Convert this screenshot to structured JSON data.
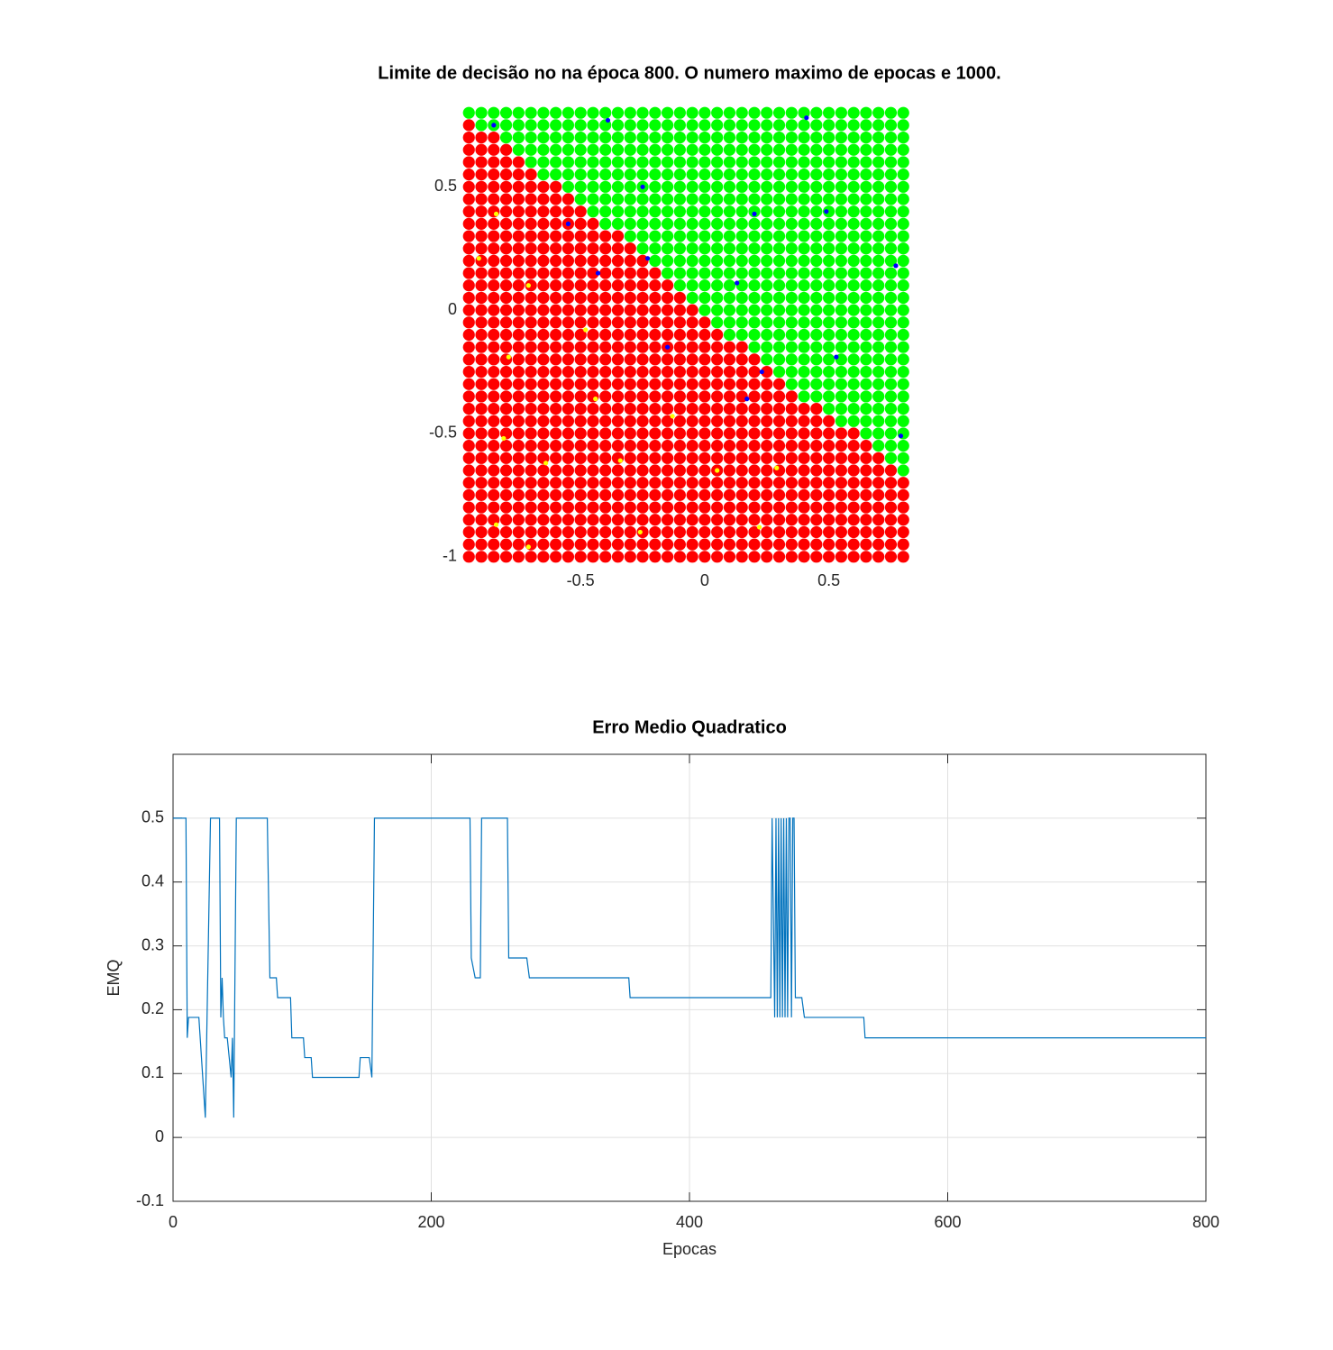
{
  "chart_data": [
    {
      "type": "decision",
      "title": "Limite de decisão no na época 800. O numero maximo de epocas e 1000.",
      "xlim": [
        -0.98,
        0.85
      ],
      "ylim": [
        -1.03,
        0.83
      ],
      "xticks": [
        -0.5,
        0,
        0.5
      ],
      "yticks": [
        -1,
        -0.5,
        0,
        0.5
      ],
      "grid_x": [
        -0.95,
        -0.9,
        -0.85,
        -0.8,
        -0.75,
        -0.7,
        -0.65,
        -0.6,
        -0.55,
        -0.5,
        -0.45,
        -0.4,
        -0.35,
        -0.3,
        -0.25,
        -0.2,
        -0.15,
        -0.1,
        -0.05,
        0,
        0.05,
        0.1,
        0.15,
        0.2,
        0.25,
        0.3,
        0.35,
        0.4,
        0.45,
        0.5,
        0.55,
        0.6,
        0.65,
        0.7,
        0.75,
        0.8
      ],
      "grid_y": [
        0.8,
        0.75,
        0.7,
        0.65,
        0.6,
        0.55,
        0.5,
        0.45,
        0.4,
        0.35,
        0.3,
        0.25,
        0.2,
        0.15,
        0.1,
        0.05,
        0,
        -0.05,
        -0.1,
        -0.15,
        -0.2,
        -0.25,
        -0.3,
        -0.35,
        -0.4,
        -0.45,
        -0.5,
        -0.55,
        -0.6,
        -0.65,
        -0.7,
        -0.75,
        -0.8,
        -0.85,
        -0.9,
        -0.95,
        -1
      ],
      "red_per_row": [
        0,
        1,
        3,
        4,
        5,
        6,
        8,
        9,
        10,
        11,
        13,
        14,
        15,
        16,
        17,
        18,
        19,
        20,
        21,
        23,
        24,
        25,
        26,
        27,
        29,
        30,
        32,
        33,
        34,
        35,
        36,
        36,
        36,
        36,
        36,
        36,
        36
      ],
      "region_colors": [
        "#ff0000",
        "#00ff00"
      ],
      "series": [
        {
          "color": "#0000ff",
          "x": [
            -0.85,
            -0.39,
            0.41,
            -0.25,
            0.2,
            0.49,
            -0.55,
            -0.23,
            -0.43,
            0.77,
            0.13,
            -0.15,
            0.53,
            0.23,
            0.17,
            0.79
          ],
          "y": [
            0.75,
            0.77,
            0.78,
            0.5,
            0.39,
            0.4,
            0.35,
            0.21,
            0.15,
            0.18,
            0.11,
            -0.15,
            -0.19,
            -0.25,
            -0.36,
            -0.51
          ]
        },
        {
          "color": "#ffff00",
          "x": [
            -0.84,
            -0.91,
            -0.71,
            -0.48,
            -0.79,
            -0.44,
            -0.13,
            -0.81,
            -0.64,
            -0.34,
            0.05,
            0.29,
            -0.84,
            -0.26,
            -0.71,
            0.22
          ],
          "y": [
            0.39,
            0.21,
            0.1,
            -0.08,
            -0.19,
            -0.36,
            -0.43,
            -0.52,
            -0.62,
            -0.61,
            -0.65,
            -0.64,
            -0.87,
            -0.9,
            -0.96,
            -0.88
          ]
        }
      ]
    },
    {
      "type": "line",
      "title": "Erro Medio Quadratico",
      "xlabel": "Epocas",
      "ylabel": "EMQ",
      "xlim": [
        0,
        800
      ],
      "ylim": [
        -0.1,
        0.6
      ],
      "xticks": [
        0,
        200,
        400,
        600,
        800
      ],
      "yticks": [
        -0.1,
        0,
        0.1,
        0.2,
        0.3,
        0.4,
        0.5
      ],
      "grid": true,
      "series": [
        {
          "color": "#0072bd",
          "x": [
            0,
            10,
            11,
            12,
            14,
            20,
            22,
            25,
            29,
            36,
            37,
            38,
            39,
            40,
            42,
            45,
            46,
            47,
            49,
            73,
            75,
            80,
            81,
            91,
            92,
            101,
            102,
            107,
            108,
            144,
            145,
            152,
            154,
            156,
            230,
            231,
            234,
            238,
            239,
            259,
            260,
            274,
            276,
            353,
            354,
            463,
            464,
            466,
            467,
            468,
            469,
            470,
            471,
            472,
            473,
            474,
            475,
            476,
            477,
            478,
            479,
            480,
            481,
            482,
            483,
            487,
            489,
            535,
            536,
            800
          ],
          "y": [
            0.5,
            0.5,
            0.156,
            0.188,
            0.188,
            0.188,
            0.125,
            0.031,
            0.5,
            0.5,
            0.188,
            0.25,
            0.188,
            0.156,
            0.156,
            0.094,
            0.156,
            0.031,
            0.5,
            0.5,
            0.25,
            0.25,
            0.219,
            0.219,
            0.156,
            0.156,
            0.125,
            0.125,
            0.094,
            0.094,
            0.125,
            0.125,
            0.094,
            0.5,
            0.5,
            0.281,
            0.25,
            0.25,
            0.5,
            0.5,
            0.281,
            0.281,
            0.25,
            0.25,
            0.219,
            0.219,
            0.5,
            0.188,
            0.5,
            0.188,
            0.5,
            0.188,
            0.5,
            0.188,
            0.5,
            0.188,
            0.5,
            0.188,
            0.5,
            0.5,
            0.188,
            0.5,
            0.5,
            0.219,
            0.219,
            0.219,
            0.188,
            0.188,
            0.156,
            0.156
          ]
        }
      ]
    }
  ]
}
